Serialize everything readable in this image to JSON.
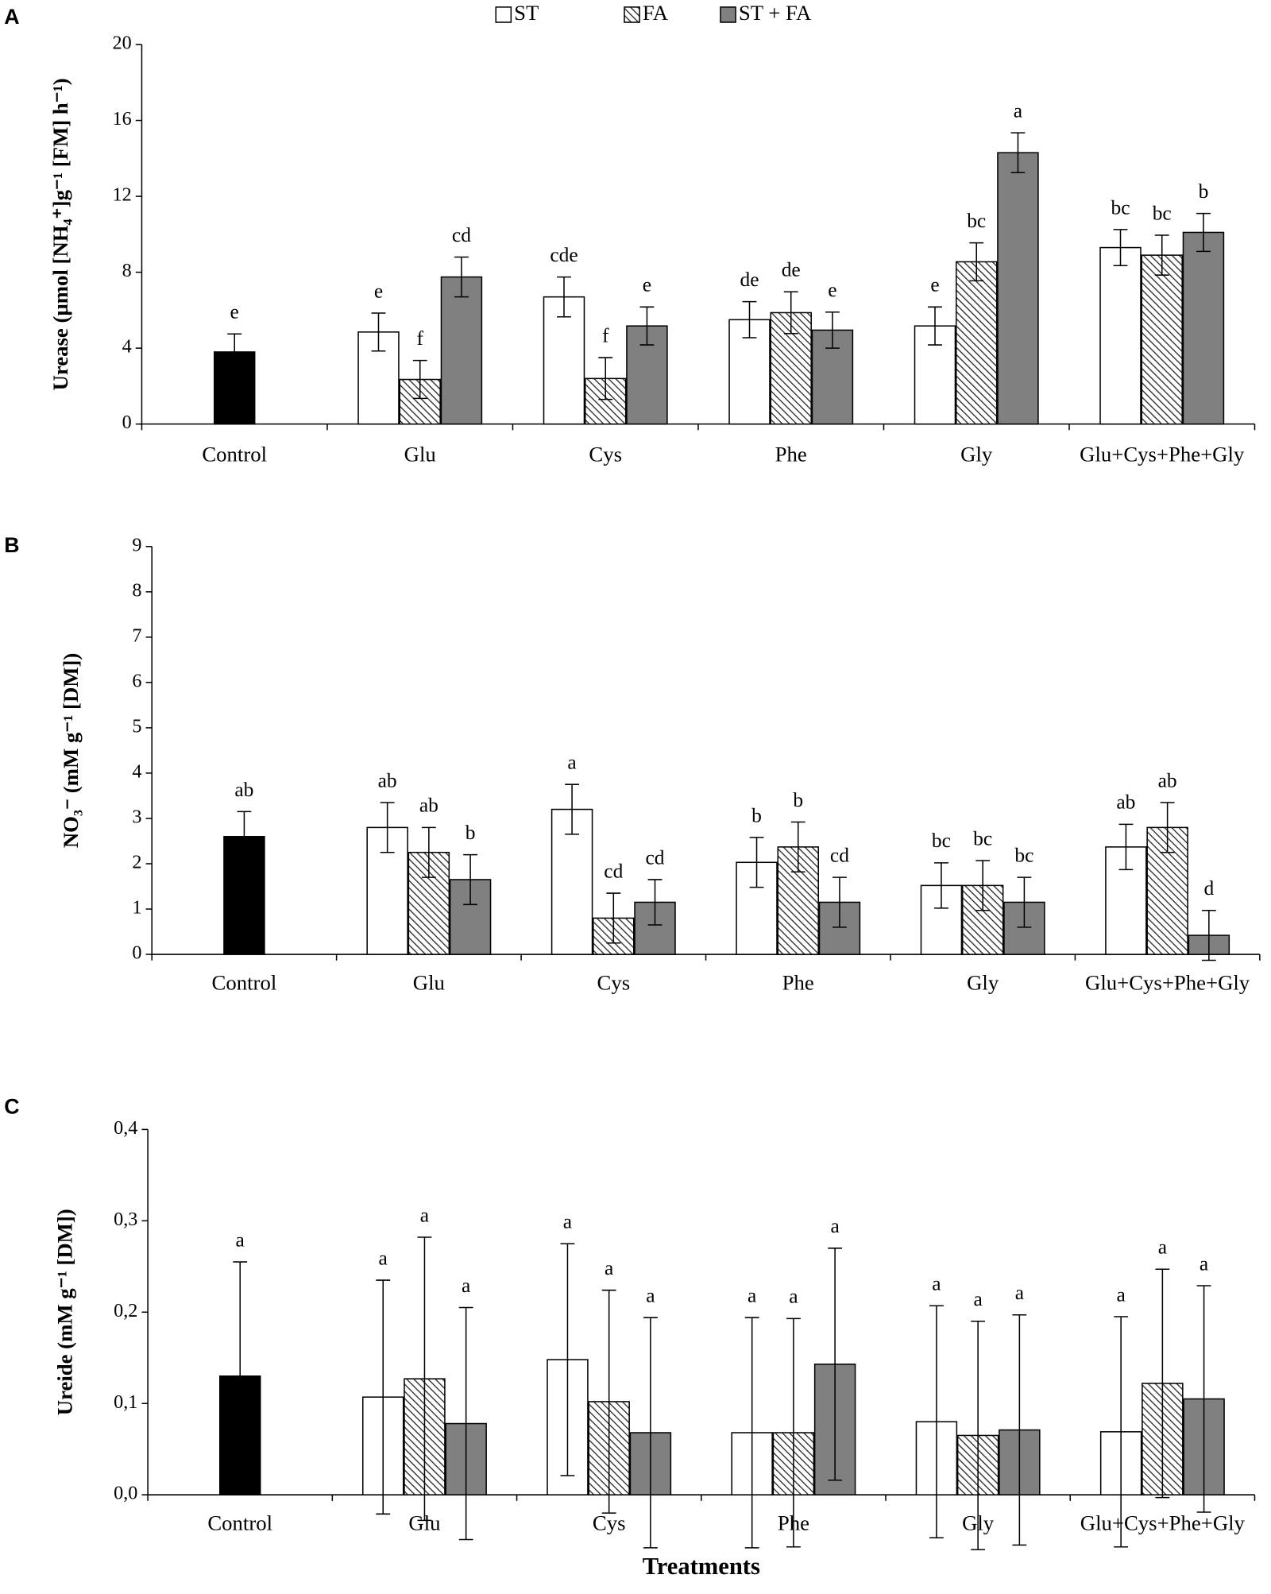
{
  "legend": [
    {
      "name": "ST",
      "color": "#ffffff"
    },
    {
      "name": "FA",
      "color": "hatch"
    },
    {
      "name": "ST + FA",
      "color": "#808080"
    }
  ],
  "chart_data": [
    {
      "type": "bar",
      "panel": "A",
      "ylabel": "Urease (µmol [NH₄⁺]g⁻¹ [FM] h⁻¹)",
      "categories": [
        "Control",
        "Glu",
        "Cys",
        "Phe",
        "Gly",
        "Glu+Cys+Phe+Gly"
      ],
      "ylim": [
        0,
        20
      ],
      "yticks": [
        0,
        4,
        8,
        12,
        16,
        20
      ],
      "control": {
        "values": [
          3.8
        ],
        "errors": [
          0.95
        ],
        "letters": [
          "e"
        ],
        "color": "#000000"
      },
      "series": [
        {
          "values": [
            null,
            4.85,
            6.7,
            5.5,
            5.17,
            9.3
          ],
          "errors": [
            null,
            1.0,
            1.05,
            0.95,
            1.0,
            0.95
          ],
          "letters": [
            null,
            "e",
            "cde",
            "de",
            "e",
            "bc"
          ]
        },
        {
          "values": [
            null,
            2.35,
            2.4,
            5.87,
            8.55,
            8.9
          ],
          "errors": [
            null,
            1.0,
            1.1,
            1.1,
            1.0,
            1.05
          ],
          "letters": [
            null,
            "f",
            "f",
            "de",
            "bc",
            "bc"
          ]
        },
        {
          "values": [
            null,
            7.75,
            5.17,
            4.95,
            14.3,
            10.1
          ],
          "errors": [
            null,
            1.05,
            1.0,
            0.95,
            1.05,
            1.0
          ],
          "letters": [
            null,
            "cd",
            "e",
            "e",
            "a",
            "b"
          ]
        }
      ]
    },
    {
      "type": "bar",
      "panel": "B",
      "ylabel": "NO₃⁻ (mM g⁻¹ [DM])",
      "categories": [
        "Control",
        "Glu",
        "Cys",
        "Phe",
        "Gly",
        "Glu+Cys+Phe+Gly"
      ],
      "ylim": [
        0,
        9
      ],
      "yticks": [
        0,
        1,
        2,
        3,
        4,
        5,
        6,
        7,
        8,
        9
      ],
      "control": {
        "values": [
          2.6
        ],
        "errors": [
          0.55
        ],
        "letters": [
          "ab"
        ],
        "color": "#000000"
      },
      "series": [
        {
          "values": [
            null,
            2.8,
            3.2,
            2.03,
            1.52,
            2.37
          ],
          "errors": [
            null,
            0.55,
            0.55,
            0.55,
            0.5,
            0.5
          ],
          "letters": [
            null,
            "ab",
            "a",
            "b",
            "bc",
            "ab"
          ]
        },
        {
          "values": [
            null,
            2.25,
            0.8,
            2.37,
            1.52,
            2.8
          ],
          "errors": [
            null,
            0.55,
            0.55,
            0.55,
            0.55,
            0.55
          ],
          "letters": [
            null,
            "ab",
            "cd",
            "b",
            "bc",
            "ab"
          ]
        },
        {
          "values": [
            null,
            1.65,
            1.15,
            1.15,
            1.15,
            0.42
          ],
          "errors": [
            null,
            0.55,
            0.5,
            0.55,
            0.55,
            0.55
          ],
          "letters": [
            null,
            "b",
            "cd",
            "cd",
            "bc",
            "d"
          ]
        }
      ]
    },
    {
      "type": "bar",
      "panel": "C",
      "ylabel": "Ureide (mM g⁻¹ [DM])",
      "xlabel": "Treatments",
      "categories": [
        "Control",
        "Glu",
        "Cys",
        "Phe",
        "Gly",
        "Glu+Cys+Phe+Gly"
      ],
      "ylim": [
        0,
        0.4
      ],
      "yticks": [
        {
          "value": 0,
          "label": "0,0"
        },
        {
          "value": 0.1,
          "label": "0,1"
        },
        {
          "value": 0.2,
          "label": "0,2"
        },
        {
          "value": 0.3,
          "label": "0,3"
        },
        {
          "value": 0.4,
          "label": "0,4"
        }
      ],
      "control": {
        "values": [
          0.13
        ],
        "errors": [
          0.125
        ],
        "letters": [
          "a"
        ],
        "color": "#000000"
      },
      "series": [
        {
          "values": [
            null,
            0.107,
            0.148,
            0.068,
            0.08,
            0.069
          ],
          "errors": [
            null,
            0.128,
            0.127,
            0.126,
            0.127,
            0.126
          ],
          "letters": [
            null,
            "a",
            "a",
            "a",
            "a",
            "a"
          ]
        },
        {
          "values": [
            null,
            0.127,
            0.102,
            0.068,
            0.065,
            0.122
          ],
          "errors": [
            null,
            0.155,
            0.122,
            0.125,
            0.125,
            0.125
          ],
          "letters": [
            null,
            "a",
            "a",
            "a",
            "a",
            "a"
          ]
        },
        {
          "values": [
            null,
            0.078,
            0.068,
            0.143,
            0.071,
            0.105
          ],
          "errors": [
            null,
            0.127,
            0.126,
            0.127,
            0.126,
            0.124
          ],
          "letters": [
            null,
            "a",
            "a",
            "a",
            "a",
            "a"
          ]
        }
      ]
    }
  ]
}
